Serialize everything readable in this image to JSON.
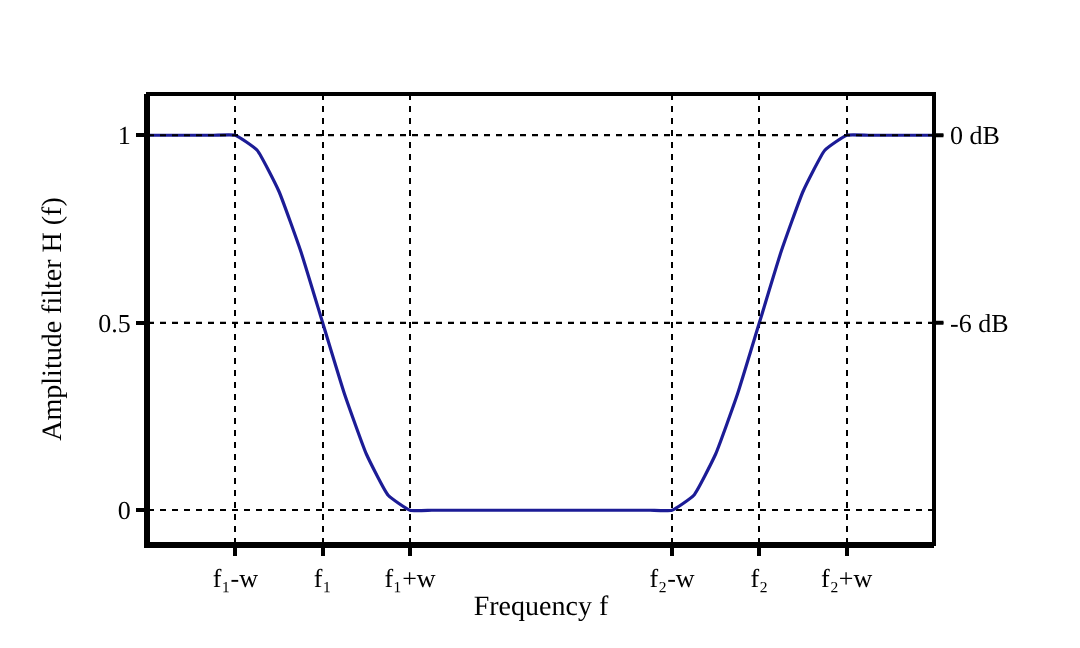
{
  "chart_data": {
    "type": "line",
    "categories": [
      null,
      null,
      null,
      null,
      "f₁-w",
      null,
      null,
      null,
      "f₁",
      null,
      null,
      null,
      "f₁+w",
      null,
      null,
      null,
      null,
      null,
      null,
      null,
      null,
      null,
      null,
      null,
      "f₂-w",
      null,
      null,
      null,
      "f₂",
      null,
      null,
      null,
      "f₂+w",
      null,
      null,
      null,
      null
    ],
    "series": [
      {
        "color": "#1c1c96",
        "values": [
          1,
          1,
          1,
          1,
          1,
          0.96,
          0.85,
          0.69,
          0.5,
          0.31,
          0.15,
          0.04,
          0,
          0,
          0,
          0,
          0,
          0,
          0,
          0,
          0,
          0,
          0,
          0,
          0,
          0.04,
          0.15,
          0.31,
          0.5,
          0.69,
          0.85,
          0.96,
          1,
          1,
          1,
          1,
          1
        ]
      }
    ],
    "xlabel": "Frequency f",
    "ylabel": "Amplitude filter H (f)",
    "ylim": [
      -0.09,
      1.11
    ],
    "yticks": [
      0,
      0.5,
      1
    ],
    "ref_lines": [
      {
        "axis": "y",
        "value": 1,
        "label": "0 dB"
      },
      {
        "axis": "y",
        "value": 0.5,
        "label": "-6 dB"
      }
    ],
    "grid": true,
    "line_style": "solid",
    "marker": "none"
  }
}
